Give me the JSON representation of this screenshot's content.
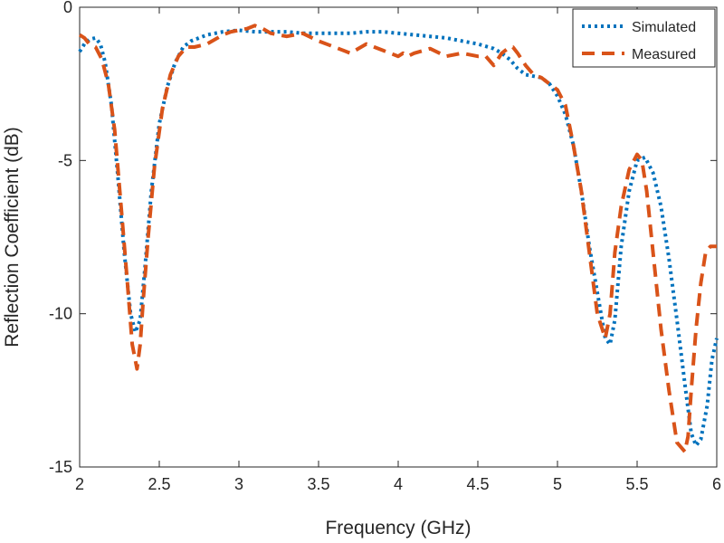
{
  "chart_data": {
    "type": "line",
    "xlabel": "Frequency (GHz)",
    "ylabel": "Reflection Coefficient (dB)",
    "xlim": [
      2,
      6
    ],
    "ylim": [
      -15,
      0
    ],
    "xticks": [
      2,
      2.5,
      3,
      3.5,
      4,
      4.5,
      5,
      5.5,
      6
    ],
    "xtick_labels": [
      "2",
      "2.5",
      "3",
      "3.5",
      "4",
      "4.5",
      "5",
      "5.5",
      "6"
    ],
    "yticks": [
      0,
      -5,
      -10,
      -15
    ],
    "ytick_labels": [
      "0",
      "-5",
      "-10",
      "-15"
    ],
    "grid": false,
    "legend_position": "top-right",
    "series": [
      {
        "name": "Simulated",
        "color": "#0072BD",
        "style": "dotted",
        "x": [
          2.0,
          2.03,
          2.06,
          2.1,
          2.13,
          2.16,
          2.2,
          2.24,
          2.28,
          2.32,
          2.35,
          2.38,
          2.41,
          2.45,
          2.5,
          2.55,
          2.6,
          2.65,
          2.7,
          2.8,
          2.9,
          3.0,
          3.1,
          3.2,
          3.3,
          3.4,
          3.5,
          3.6,
          3.7,
          3.8,
          3.9,
          4.0,
          4.1,
          4.2,
          4.3,
          4.4,
          4.5,
          4.6,
          4.65,
          4.7,
          4.75,
          4.8,
          4.85,
          4.9,
          4.95,
          5.0,
          5.05,
          5.1,
          5.15,
          5.2,
          5.25,
          5.3,
          5.33,
          5.36,
          5.4,
          5.45,
          5.5,
          5.55,
          5.6,
          5.65,
          5.7,
          5.75,
          5.8,
          5.84,
          5.87,
          5.9,
          5.94,
          5.97,
          6.0
        ],
        "y": [
          -1.45,
          -1.2,
          -1.05,
          -1.0,
          -1.2,
          -1.8,
          -3.2,
          -5.5,
          -8.0,
          -10.0,
          -10.6,
          -10.2,
          -8.5,
          -6.0,
          -3.8,
          -2.6,
          -1.8,
          -1.3,
          -1.1,
          -0.9,
          -0.8,
          -0.75,
          -0.8,
          -0.8,
          -0.8,
          -0.85,
          -0.85,
          -0.85,
          -0.85,
          -0.8,
          -0.8,
          -0.85,
          -0.9,
          -0.95,
          -1.0,
          -1.1,
          -1.2,
          -1.35,
          -1.5,
          -1.7,
          -2.0,
          -2.2,
          -2.25,
          -2.3,
          -2.5,
          -2.9,
          -3.5,
          -4.5,
          -6.0,
          -7.8,
          -9.3,
          -10.8,
          -11.0,
          -10.2,
          -7.8,
          -6.0,
          -5.0,
          -4.9,
          -5.4,
          -6.5,
          -8.2,
          -10.2,
          -12.3,
          -13.9,
          -14.3,
          -14.1,
          -13.0,
          -11.5,
          -10.8
        ]
      },
      {
        "name": "Measured",
        "color": "#D95319",
        "style": "dashed",
        "x": [
          2.0,
          2.03,
          2.06,
          2.1,
          2.14,
          2.18,
          2.22,
          2.26,
          2.3,
          2.33,
          2.36,
          2.38,
          2.4,
          2.43,
          2.47,
          2.52,
          2.57,
          2.62,
          2.67,
          2.72,
          2.8,
          2.9,
          2.95,
          3.0,
          3.05,
          3.1,
          3.15,
          3.2,
          3.3,
          3.4,
          3.5,
          3.6,
          3.7,
          3.8,
          3.9,
          4.0,
          4.03,
          4.06,
          4.1,
          4.2,
          4.3,
          4.4,
          4.5,
          4.55,
          4.6,
          4.65,
          4.7,
          4.72,
          4.75,
          4.8,
          4.85,
          4.9,
          4.95,
          5.0,
          5.05,
          5.1,
          5.15,
          5.2,
          5.25,
          5.3,
          5.33,
          5.36,
          5.4,
          5.45,
          5.5,
          5.53,
          5.56,
          5.6,
          5.65,
          5.7,
          5.75,
          5.8,
          5.82,
          5.84,
          5.87,
          5.9,
          5.93,
          5.96,
          6.0
        ],
        "y": [
          -0.9,
          -1.0,
          -1.2,
          -1.3,
          -1.7,
          -2.5,
          -4.0,
          -6.5,
          -9.0,
          -11.0,
          -11.8,
          -11.0,
          -9.5,
          -7.5,
          -5.2,
          -3.3,
          -2.2,
          -1.6,
          -1.3,
          -1.3,
          -1.2,
          -0.9,
          -0.8,
          -0.75,
          -0.7,
          -0.6,
          -0.7,
          -0.85,
          -0.95,
          -0.85,
          -1.1,
          -1.3,
          -1.5,
          -1.2,
          -1.4,
          -1.6,
          -1.5,
          -1.6,
          -1.5,
          -1.35,
          -1.6,
          -1.5,
          -1.6,
          -1.6,
          -1.9,
          -1.5,
          -1.3,
          -1.3,
          -1.5,
          -1.9,
          -2.2,
          -2.3,
          -2.5,
          -2.7,
          -3.2,
          -4.5,
          -6.0,
          -8.0,
          -10.0,
          -10.8,
          -10.0,
          -8.0,
          -6.5,
          -5.3,
          -4.8,
          -5.0,
          -6.0,
          -8.0,
          -10.5,
          -12.5,
          -14.2,
          -14.5,
          -14.0,
          -12.5,
          -10.5,
          -9.0,
          -8.0,
          -7.8,
          -7.8
        ]
      }
    ]
  }
}
